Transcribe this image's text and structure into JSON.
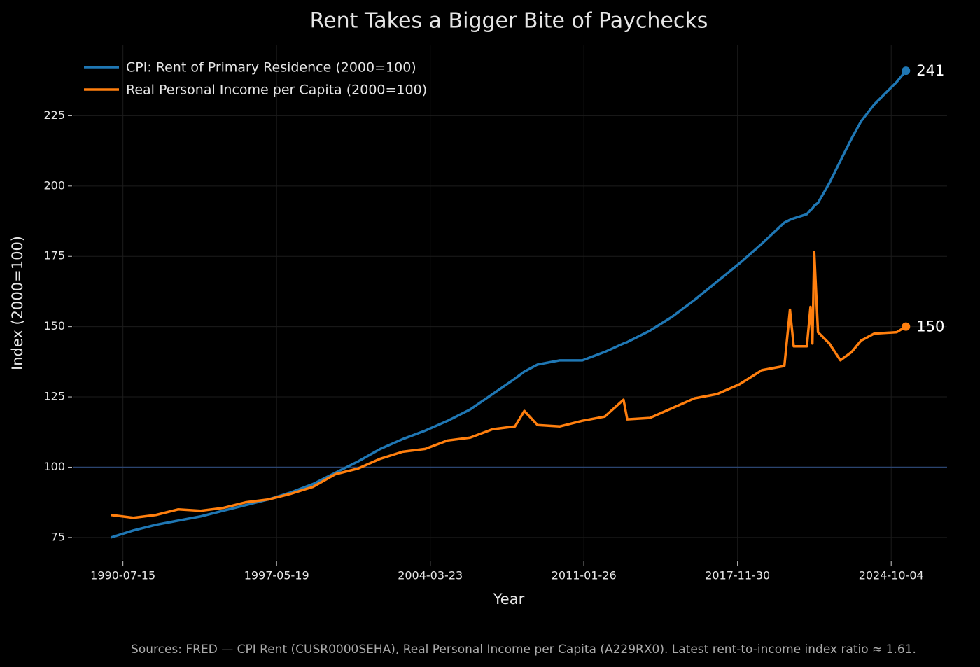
{
  "chart_data": {
    "type": "line",
    "title": "Rent Takes a Bigger Bite of Paychecks",
    "xlabel": "Year",
    "ylabel": "Index (2000=100)",
    "source": "Sources: FRED — CPI Rent (CUSR0000SEHA), Real Personal Income per Capita (A229RX0). Latest rent-to-income index ratio ≈ 1.61.",
    "x": [
      "1990-01-01",
      "1991-01-01",
      "1992-01-01",
      "1993-01-01",
      "1994-01-01",
      "1995-01-01",
      "1996-01-01",
      "1997-01-01",
      "1998-01-01",
      "1999-01-01",
      "2000-01-01",
      "2001-01-01",
      "2002-01-01",
      "2003-01-01",
      "2004-01-01",
      "2005-01-01",
      "2006-01-01",
      "2007-01-01",
      "2008-01-01",
      "2008-06-01",
      "2009-01-01",
      "2010-01-01",
      "2011-01-01",
      "2012-01-01",
      "2012-11-01",
      "2013-01-01",
      "2014-01-01",
      "2015-01-01",
      "2016-01-01",
      "2017-01-01",
      "2018-01-01",
      "2019-01-01",
      "2020-01-01",
      "2020-04-01",
      "2020-06-01",
      "2021-01-01",
      "2021-03-01",
      "2021-04-01",
      "2021-05-01",
      "2021-07-01",
      "2022-01-01",
      "2022-07-01",
      "2023-01-01",
      "2023-06-01",
      "2024-01-01",
      "2025-01-01",
      "2025-06-01"
    ],
    "series": [
      {
        "name": "CPI: Rent of Primary Residence (2000=100)",
        "color": "#1f77b4",
        "values": [
          75,
          77.5,
          79.5,
          81,
          82.5,
          84.5,
          86.5,
          88.5,
          91,
          94,
          98,
          102,
          106.5,
          110,
          113,
          116.5,
          120.5,
          126,
          131.5,
          134,
          136.5,
          138,
          138,
          141,
          144,
          144.5,
          148.5,
          153.5,
          159.5,
          166,
          172.5,
          179.5,
          187,
          188,
          188.5,
          190,
          191.5,
          192,
          193,
          194,
          201,
          209,
          217,
          223,
          229,
          237,
          241
        ]
      },
      {
        "name": "Real Personal Income per Capita (2000=100)",
        "color": "#ff7f0e",
        "values": [
          83,
          82,
          83,
          85,
          84.5,
          85.5,
          87.5,
          88.5,
          90.5,
          93,
          97.5,
          99.5,
          103,
          105.5,
          106.5,
          109.5,
          110.5,
          113.5,
          114.5,
          120,
          115,
          114.5,
          116.5,
          118,
          124,
          117,
          117.5,
          121,
          124.5,
          126,
          129.5,
          134.5,
          136,
          156,
          143,
          143,
          157,
          144,
          176.5,
          148,
          144,
          138,
          141,
          145,
          147.5,
          148,
          150
        ]
      }
    ],
    "xlim": [
      "1988-05-01",
      "2027-04-01"
    ],
    "xticks": [
      "1990-07-15",
      "1997-05-19",
      "2004-03-23",
      "2011-01-26",
      "2017-11-30",
      "2024-10-04"
    ],
    "ylim": [
      67,
      250
    ],
    "yticks": [
      75,
      100,
      125,
      150,
      175,
      200,
      225
    ],
    "hline": 100,
    "grid": true,
    "legend": "upper-left"
  }
}
